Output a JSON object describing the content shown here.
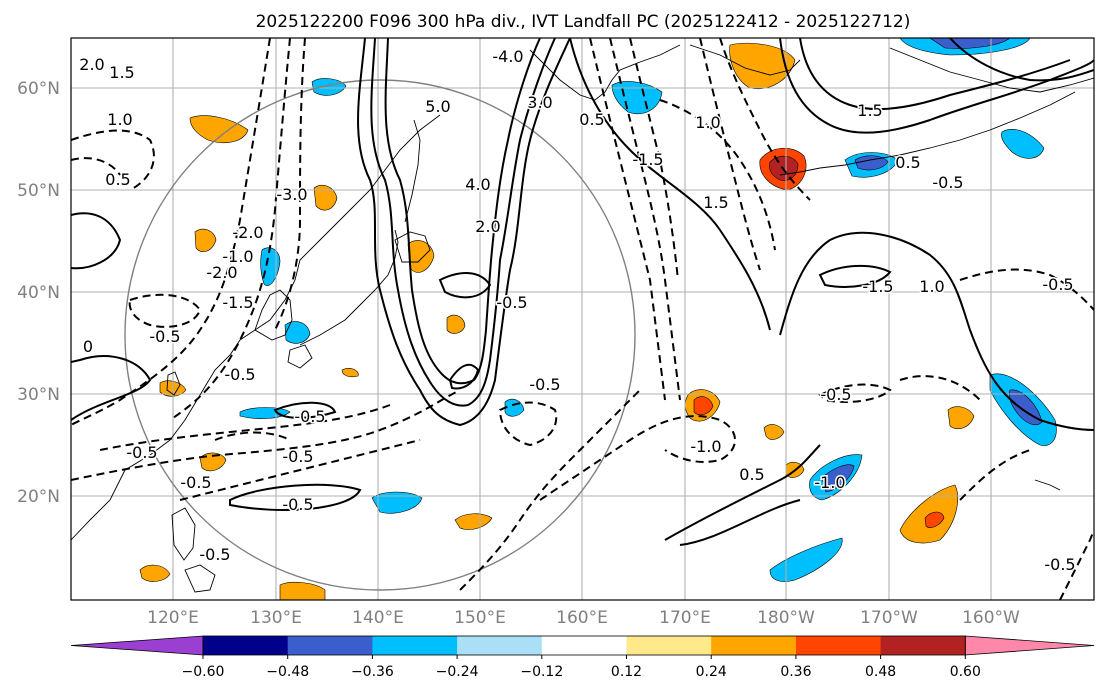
{
  "title": "2025122200 F096 300 hPa div., IVT Landfall PC (2025122412 - 2025122712)",
  "lon_labels": [
    "120°E",
    "130°E",
    "140°E",
    "150°E",
    "160°E",
    "170°E",
    "180°W",
    "170°W",
    "160°W"
  ],
  "lat_labels": [
    "60°N",
    "50°N",
    "40°N",
    "30°N",
    "20°N"
  ],
  "colorbar": {
    "colors": [
      "#9a3fd1",
      "#00008b",
      "#3a5fcd",
      "#00bfff",
      "#aadff8",
      "#ffffff",
      "#ffe98a",
      "#ffa500",
      "#ff4500",
      "#b22222",
      "#ff88aa"
    ],
    "ticks": [
      "−0.60",
      "−0.48",
      "−0.36",
      "−0.24",
      "−0.12",
      "0.12",
      "0.24",
      "0.36",
      "0.48",
      "0.60"
    ]
  },
  "contour_labels": [
    "2.0",
    "1.5",
    "1.0",
    "0.5",
    "0",
    "-0.5",
    "-1.0",
    "-1.5",
    "-2.0",
    "-3.0",
    "-4.0",
    "5.0",
    "4.0",
    "3.0",
    "0.5",
    "1.5",
    "1.0",
    "-1.5",
    "2.0",
    "-1.0",
    "-0.5",
    "0.5",
    "-1.0",
    "-0.5",
    "-0.5",
    "-0.5",
    "-0.5",
    "-0.5",
    "-0.5",
    "-0.5",
    "-0.5",
    "-0.5",
    "-0.5",
    "0.5",
    "1.0",
    "-1.5",
    "-2.0",
    "1.5",
    "-0.5",
    "-0.5"
  ],
  "shaded_features": [
    {
      "name": "pos-kamchatka-north",
      "cat": 7
    },
    {
      "name": "pos-okhotsk",
      "cat": 7
    },
    {
      "name": "pos-sakhalin",
      "cat": 7
    },
    {
      "name": "pos-manchuria",
      "cat": 7
    },
    {
      "name": "pos-hokkaido",
      "cat": 7
    },
    {
      "name": "pos-dateline-50n",
      "cat": 8
    },
    {
      "name": "pos-dateline-50n-core",
      "cat": 9
    },
    {
      "name": "pos-165e-30n",
      "cat": 7
    },
    {
      "name": "pos-165e-30n-core",
      "cat": 8
    },
    {
      "name": "pos-150e-38n",
      "cat": 7
    },
    {
      "name": "pos-southern-japan",
      "cat": 7
    },
    {
      "name": "pos-taiwan",
      "cat": 7
    },
    {
      "name": "pos-philippine-sea",
      "cat": 7
    },
    {
      "name": "pos-sw-corner",
      "cat": 7
    },
    {
      "name": "pos-150e-18n",
      "cat": 7
    },
    {
      "name": "pos-175w-30n",
      "cat": 7
    },
    {
      "name": "pos-177e-27n",
      "cat": 7
    },
    {
      "name": "pos-175w-22n",
      "cat": 7
    },
    {
      "name": "pos-160w-20n",
      "cat": 7
    },
    {
      "name": "pos-160w-20n-core",
      "cat": 8
    },
    {
      "name": "pos-135e-10n",
      "cat": 7
    },
    {
      "name": "neg-kamchatka-coast",
      "cat": 3
    },
    {
      "name": "neg-alaska-north",
      "cat": 3
    },
    {
      "name": "neg-alaska-north-core",
      "cat": 2
    },
    {
      "name": "neg-dateline-52n",
      "cat": 3
    },
    {
      "name": "neg-dateline-52n-core",
      "cat": 2
    },
    {
      "name": "neg-korea",
      "cat": 3
    },
    {
      "name": "neg-japan",
      "cat": 3
    },
    {
      "name": "neg-160w-30n",
      "cat": 3
    },
    {
      "name": "neg-160w-30n-core",
      "cat": 2
    },
    {
      "name": "neg-170w-22n",
      "cat": 3
    },
    {
      "name": "neg-170w-22n-core",
      "cat": 2
    },
    {
      "name": "neg-175w-15n",
      "cat": 3
    },
    {
      "name": "neg-140e-18n",
      "cat": 3
    },
    {
      "name": "neg-135e-27n",
      "cat": 3
    },
    {
      "name": "neg-150e-29n",
      "cat": 3
    },
    {
      "name": "neg-north-coast",
      "cat": 3
    },
    {
      "name": "neg-157w-60n",
      "cat": 3
    }
  ]
}
